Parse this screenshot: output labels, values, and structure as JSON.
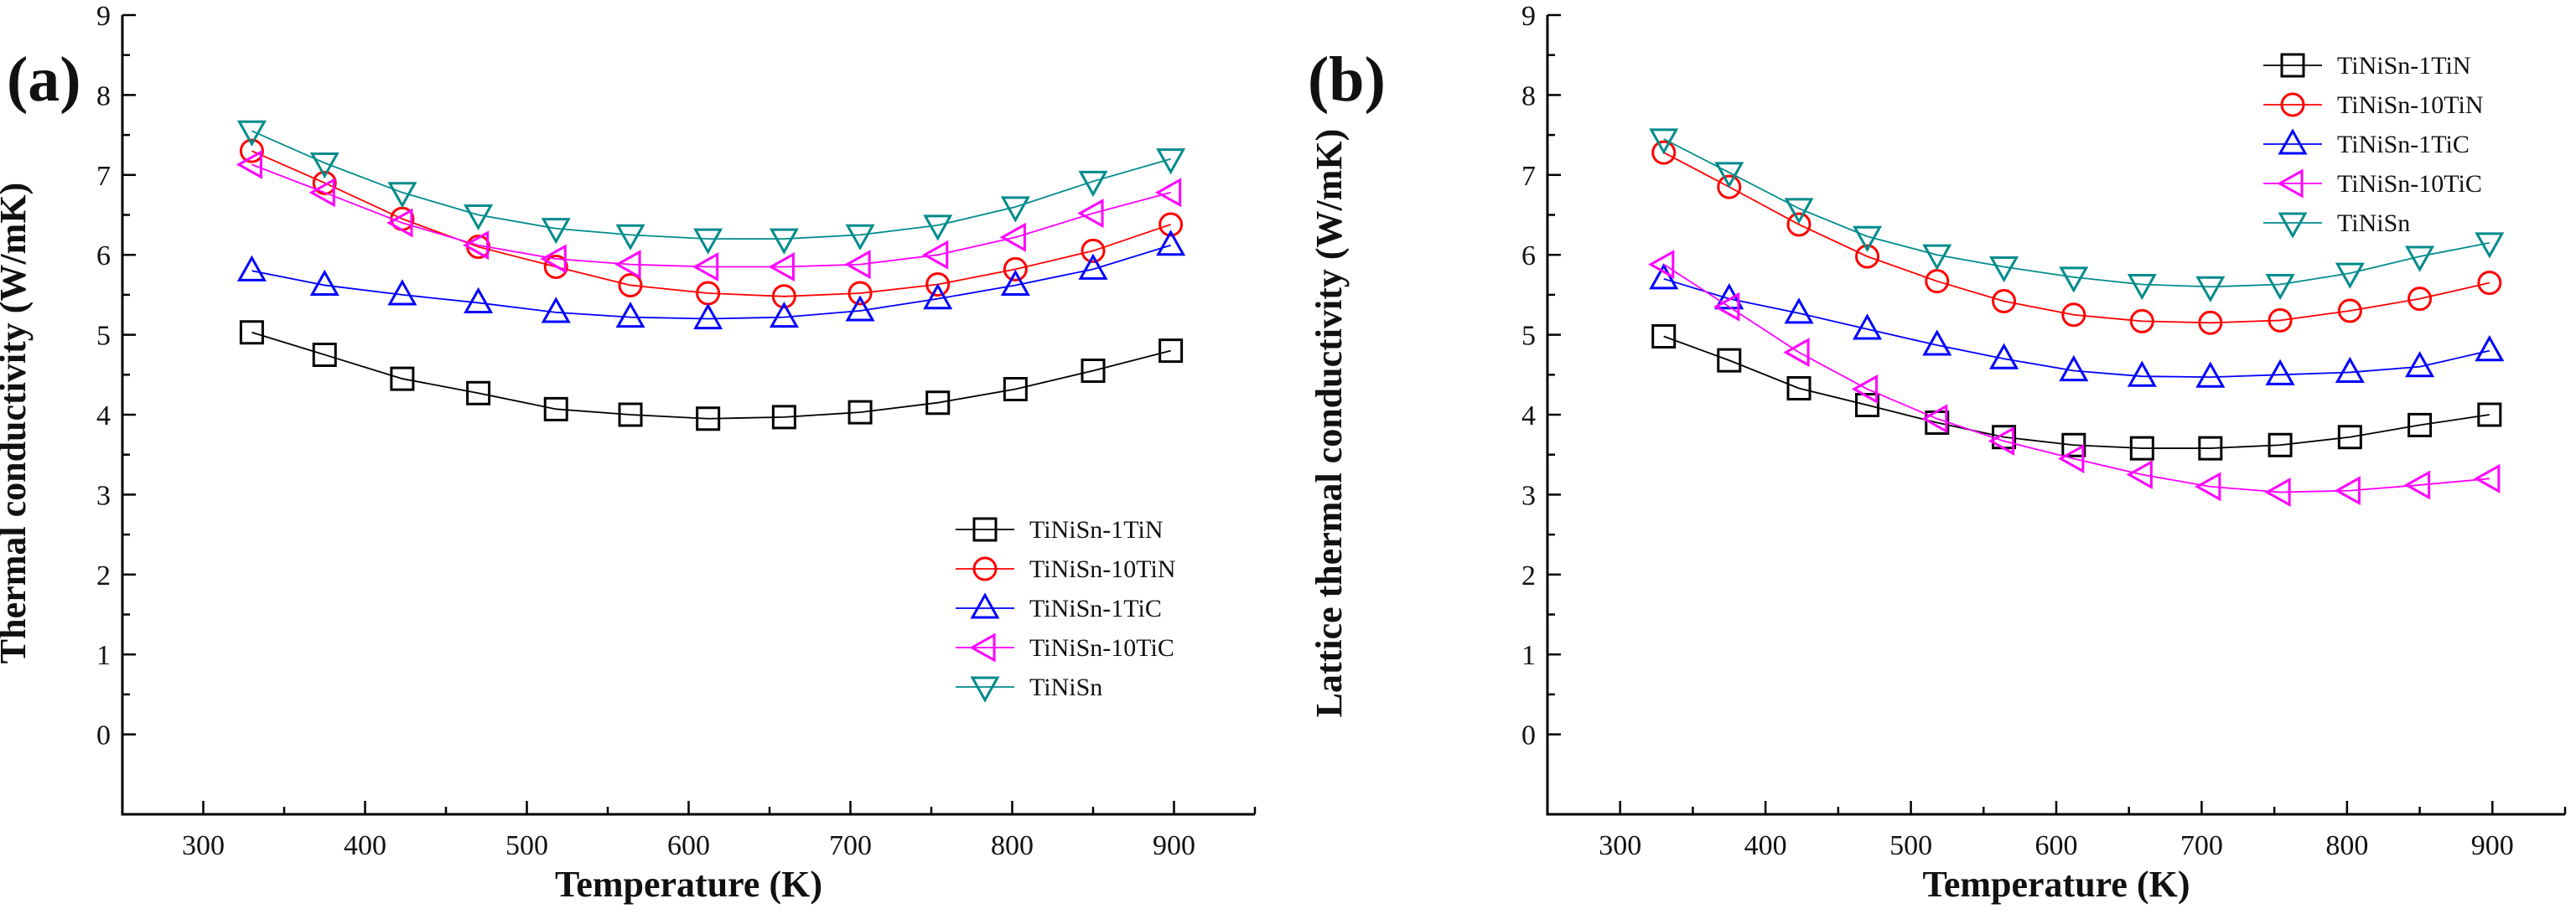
{
  "chart_data": [
    {
      "panel_label": "(a)",
      "type": "line",
      "title": "",
      "xlabel": "Temperature (K)",
      "ylabel": "Thermal conductivity (W/mK)",
      "xlim": [
        250,
        950
      ],
      "ylim": [
        -1,
        9
      ],
      "xticks": [
        "300",
        "400",
        "500",
        "600",
        "700",
        "800",
        "900"
      ],
      "yticks": [
        "0",
        "1",
        "2",
        "3",
        "4",
        "5",
        "6",
        "7",
        "8",
        "9"
      ],
      "legend_position": "bottom-right",
      "x": [
        330,
        375,
        423,
        470,
        518,
        564,
        612,
        659,
        706,
        754,
        802,
        850,
        898
      ],
      "series": [
        {
          "name": "TiNiSn-1TiN",
          "marker": "square",
          "color": "#000000",
          "values": [
            5.03,
            4.75,
            4.45,
            4.27,
            4.07,
            4.0,
            3.95,
            3.97,
            4.03,
            4.15,
            4.32,
            4.55,
            4.8
          ]
        },
        {
          "name": "TiNiSn-10TiN",
          "marker": "circle",
          "color": "#ff0000",
          "values": [
            7.3,
            6.9,
            6.45,
            6.1,
            5.85,
            5.62,
            5.52,
            5.48,
            5.52,
            5.63,
            5.82,
            6.05,
            6.38
          ]
        },
        {
          "name": "TiNiSn-1TiC",
          "marker": "triangle-up",
          "color": "#0000ff",
          "values": [
            5.8,
            5.62,
            5.5,
            5.4,
            5.28,
            5.22,
            5.2,
            5.22,
            5.3,
            5.45,
            5.62,
            5.82,
            6.12
          ]
        },
        {
          "name": "TiNiSn-10TiC",
          "marker": "triangle-left",
          "color": "#ff00ff",
          "values": [
            7.13,
            6.78,
            6.4,
            6.12,
            5.95,
            5.88,
            5.85,
            5.85,
            5.88,
            6.0,
            6.22,
            6.52,
            6.78
          ]
        },
        {
          "name": "TiNiSn",
          "marker": "triangle-down",
          "color": "#008b8b",
          "values": [
            7.55,
            7.15,
            6.78,
            6.5,
            6.33,
            6.25,
            6.2,
            6.2,
            6.25,
            6.37,
            6.6,
            6.92,
            7.2
          ]
        }
      ]
    },
    {
      "panel_label": "(b)",
      "type": "line",
      "title": "",
      "xlabel": "Temperature (K)",
      "ylabel": "Lattice thermal conductivity (W/mK)",
      "xlim": [
        250,
        950
      ],
      "ylim": [
        -1,
        9
      ],
      "xticks": [
        "300",
        "400",
        "500",
        "600",
        "700",
        "800",
        "900"
      ],
      "yticks": [
        "0",
        "1",
        "2",
        "3",
        "4",
        "5",
        "6",
        "7",
        "8",
        "9"
      ],
      "legend_position": "top-right",
      "x": [
        330,
        375,
        423,
        470,
        518,
        564,
        612,
        659,
        706,
        754,
        802,
        850,
        898
      ],
      "series": [
        {
          "name": "TiNiSn-1TiN",
          "marker": "square",
          "color": "#000000",
          "values": [
            4.98,
            4.68,
            4.33,
            4.12,
            3.9,
            3.72,
            3.62,
            3.58,
            3.58,
            3.62,
            3.72,
            3.87,
            4.0
          ]
        },
        {
          "name": "TiNiSn-10TiN",
          "marker": "circle",
          "color": "#ff0000",
          "values": [
            7.28,
            6.85,
            6.38,
            5.98,
            5.67,
            5.42,
            5.25,
            5.17,
            5.15,
            5.18,
            5.3,
            5.45,
            5.65
          ]
        },
        {
          "name": "TiNiSn-1TiC",
          "marker": "triangle-up",
          "color": "#0000ff",
          "values": [
            5.7,
            5.45,
            5.27,
            5.07,
            4.87,
            4.7,
            4.55,
            4.48,
            4.47,
            4.5,
            4.53,
            4.6,
            4.8
          ]
        },
        {
          "name": "TiNiSn-10TiC",
          "marker": "triangle-left",
          "color": "#ff00ff",
          "values": [
            5.88,
            5.35,
            4.78,
            4.32,
            3.95,
            3.67,
            3.45,
            3.25,
            3.1,
            3.03,
            3.05,
            3.12,
            3.2
          ]
        },
        {
          "name": "TiNiSn",
          "marker": "triangle-down",
          "color": "#008b8b",
          "values": [
            7.45,
            7.03,
            6.58,
            6.23,
            6.0,
            5.85,
            5.72,
            5.63,
            5.6,
            5.63,
            5.77,
            5.98,
            6.15
          ]
        }
      ]
    }
  ]
}
